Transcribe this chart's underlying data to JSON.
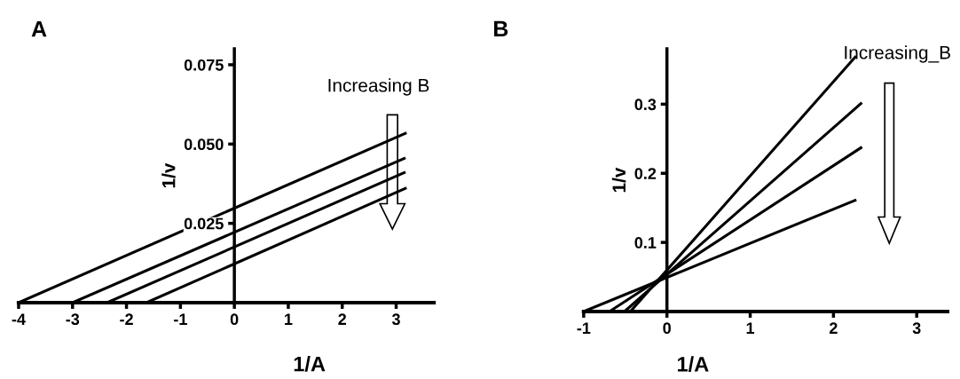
{
  "chart_data": [
    {
      "type": "line",
      "title": "A",
      "xlabel": "1/A",
      "ylabel": "1/v",
      "xlim": [
        -4,
        3.7
      ],
      "ylim": [
        0,
        0.08
      ],
      "xticks": [
        -4,
        -3,
        -2,
        -1,
        0,
        1,
        2,
        3
      ],
      "yticks": [
        {
          "value": 0.025,
          "label": "0.025"
        },
        {
          "value": 0.05,
          "label": "0.050"
        },
        {
          "value": 0.075,
          "label": "0.075"
        }
      ],
      "grid": false,
      "marker": "none",
      "line_style": "solid",
      "annotations": [
        "Increasing B"
      ],
      "series": [
        {
          "color": "#000000",
          "x": [
            -4,
            3.17
          ],
          "values": [
            0,
            0.0534
          ]
        },
        {
          "color": "#000000",
          "x": [
            -3,
            3.15
          ],
          "values": [
            0,
            0.0455
          ]
        },
        {
          "color": "#000000",
          "x": [
            -2.36,
            3.15
          ],
          "values": [
            0,
            0.041
          ]
        },
        {
          "color": "#000000",
          "x": [
            -1.63,
            3.17
          ],
          "values": [
            0,
            0.036
          ]
        }
      ]
    },
    {
      "type": "line",
      "title": "B",
      "xlabel": "1/A",
      "ylabel": "1/v",
      "xlim": [
        -1,
        3.37
      ],
      "ylim": [
        0,
        0.38
      ],
      "xticks": [
        -1,
        0,
        1,
        2,
        3
      ],
      "yticks": [
        0.1,
        0.2,
        0.3
      ],
      "grid": false,
      "marker": "none",
      "line_style": "solid",
      "annotations": [
        "Increasing_B"
      ],
      "series": [
        {
          "color": "#000000",
          "x": [
            -0.44,
            2.26
          ],
          "values": [
            0,
            0.368
          ]
        },
        {
          "color": "#000000",
          "x": [
            -0.51,
            2.33
          ],
          "values": [
            0,
            0.301
          ]
        },
        {
          "color": "#000000",
          "x": [
            -0.69,
            2.33
          ],
          "values": [
            0,
            0.237
          ]
        },
        {
          "color": "#000000",
          "x": [
            -1,
            2.26
          ],
          "values": [
            0,
            0.161
          ]
        }
      ]
    }
  ]
}
